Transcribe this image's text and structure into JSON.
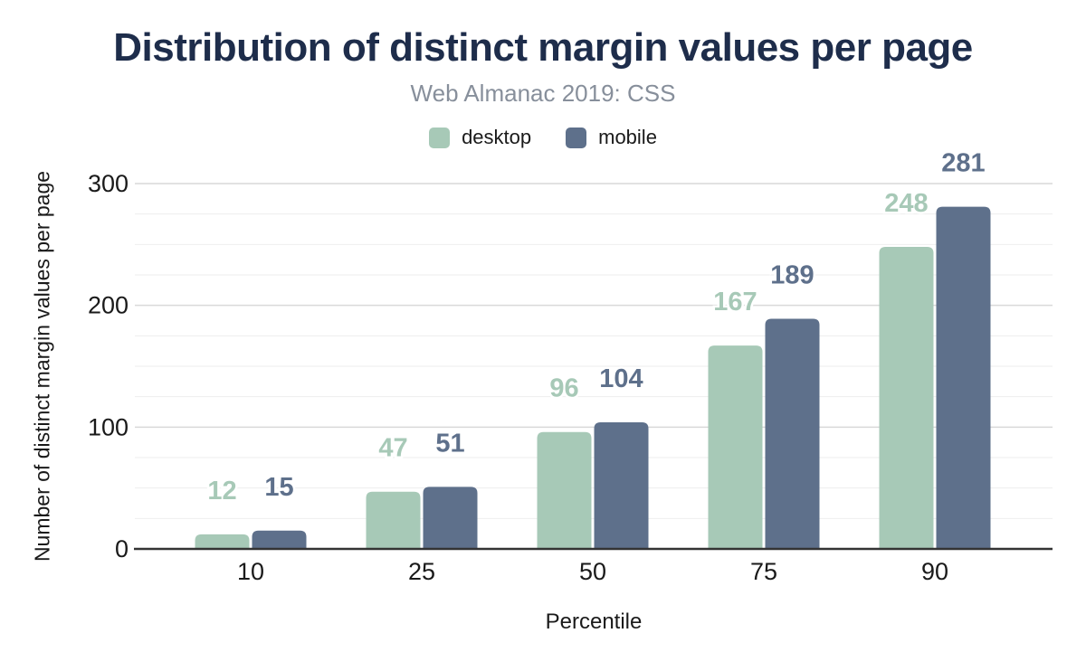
{
  "chart_data": {
    "type": "bar",
    "title": "Distribution of distinct margin values per page",
    "subtitle": "Web Almanac 2019: CSS",
    "xlabel": "Percentile",
    "ylabel": "Number of distinct margin values per page",
    "categories": [
      "10",
      "25",
      "50",
      "75",
      "90"
    ],
    "series": [
      {
        "name": "desktop",
        "color": "#a7c9b7",
        "values": [
          12,
          47,
          96,
          167,
          248
        ]
      },
      {
        "name": "mobile",
        "color": "#5e708b",
        "values": [
          15,
          51,
          104,
          189,
          281
        ]
      }
    ],
    "ylim": [
      0,
      300
    ],
    "y_major_ticks": [
      0,
      100,
      200,
      300
    ],
    "y_minor_step": 25,
    "grid": true,
    "legend_position": "top",
    "value_labels": true
  },
  "colors": {
    "background": "#ffffff",
    "title": "#1e2d4b",
    "subtitle": "#878f9b",
    "axis_text": "#1a1a1a",
    "baseline": "#333333",
    "grid_major": "#d9d9d9",
    "grid_minor": "#eeeeee"
  }
}
